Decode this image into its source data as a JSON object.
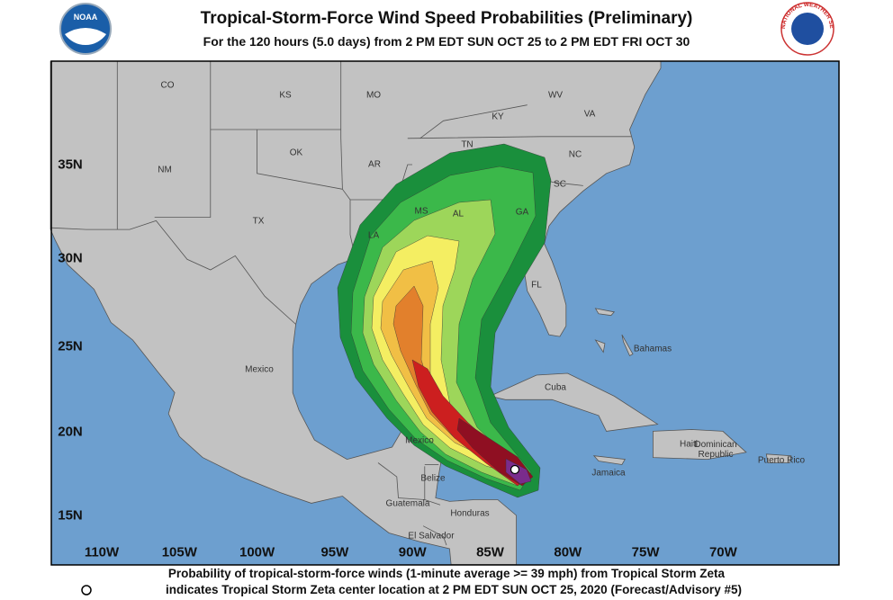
{
  "header": {
    "title": "Tropical-Storm-Force Wind Speed Probabilities (Preliminary)",
    "subtitle": "For the 120 hours (5.0 days) from 2 PM EDT SUN OCT 25 to 2 PM EDT FRI OCT 30",
    "noaa_logo": "NOAA",
    "nws_logo": "NATIONAL WEATHER SERVICE"
  },
  "map": {
    "labels": [
      "CO",
      "KS",
      "MO",
      "WV",
      "KY",
      "VA",
      "TN",
      "NC",
      "OK",
      "AR",
      "NM",
      "SC",
      "TX",
      "MS",
      "AL",
      "GA",
      "LA",
      "FL",
      "Bahamas",
      "Mexico",
      "Cuba",
      "Haiti",
      "Dominican Republic",
      "Puerto Rico",
      "Jamaica",
      "Mexico",
      "Belize",
      "Guatemala",
      "Honduras",
      "El Salvador"
    ],
    "lat_labels": [
      "35N",
      "30N",
      "25N",
      "20N",
      "15N"
    ],
    "lon_labels": [
      "110W",
      "105W",
      "100W",
      "95W",
      "90W",
      "85W",
      "80W",
      "75W",
      "70W"
    ]
  },
  "footer": {
    "line1": "Probability of tropical-storm-force winds (1-minute average >= 39 mph) from Tropical Storm Zeta",
    "line2": "indicates Tropical Storm Zeta center location at 2 PM EDT SUN OCT 25, 2020 (Forecast/Advisory #5)"
  }
}
